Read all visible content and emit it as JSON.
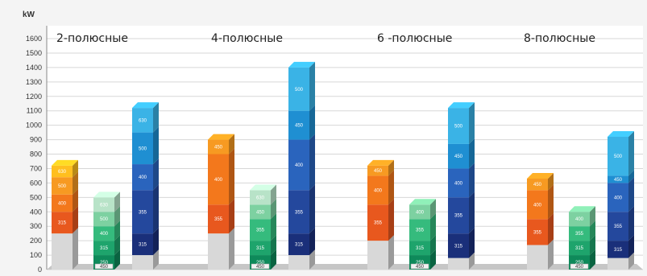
{
  "chart_data": {
    "type": "bar",
    "ylabel": "kW",
    "ylim": [
      0,
      1600
    ],
    "yticks": [
      "0",
      "100",
      "200",
      "300",
      "400",
      "500",
      "600",
      "700",
      "800",
      "900",
      "1000",
      "1100",
      "1200",
      "1300",
      "1400",
      "1500",
      "1600"
    ],
    "grid": true,
    "groups": [
      {
        "label": "2-полюсные",
        "bars": [
          {
            "family": "orange",
            "base": 250,
            "tag": "",
            "segments": [
              {
                "top": 400,
                "label": "315"
              },
              {
                "top": 520,
                "label": "400"
              },
              {
                "top": 640,
                "label": "500"
              },
              {
                "top": 720,
                "label": "630"
              }
            ]
          },
          {
            "family": "green",
            "base": 0,
            "tag": "450",
            "segments": [
              {
                "top": 100,
                "label": "250"
              },
              {
                "top": 200,
                "label": "315"
              },
              {
                "top": 300,
                "label": "400"
              },
              {
                "top": 400,
                "label": "500"
              },
              {
                "top": 500,
                "label": "630"
              }
            ]
          },
          {
            "family": "blue",
            "base": 100,
            "tag": "",
            "segments": [
              {
                "top": 250,
                "label": "315"
              },
              {
                "top": 550,
                "label": "355"
              },
              {
                "top": 730,
                "label": "400"
              },
              {
                "top": 950,
                "label": "500"
              },
              {
                "top": 1120,
                "label": "630"
              }
            ]
          }
        ]
      },
      {
        "label": "4-полюсные",
        "bars": [
          {
            "family": "orange",
            "base": 250,
            "tag": "",
            "segments": [
              {
                "top": 450,
                "label": "355"
              },
              {
                "top": 800,
                "label": "400"
              },
              {
                "top": 900,
                "label": "450"
              }
            ]
          },
          {
            "family": "green",
            "base": 0,
            "tag": "450",
            "segments": [
              {
                "top": 100,
                "label": "250"
              },
              {
                "top": 200,
                "label": "315"
              },
              {
                "top": 350,
                "label": "355"
              },
              {
                "top": 450,
                "label": "450"
              },
              {
                "top": 550,
                "label": "630"
              }
            ]
          },
          {
            "family": "blue",
            "base": 100,
            "tag": "",
            "segments": [
              {
                "top": 250,
                "label": "315"
              },
              {
                "top": 550,
                "label": "355"
              },
              {
                "top": 900,
                "label": "400"
              },
              {
                "top": 1100,
                "label": "450"
              },
              {
                "top": 1400,
                "label": "500"
              }
            ]
          }
        ]
      },
      {
        "label": "6 -полюсные",
        "bars": [
          {
            "family": "orange",
            "base": 200,
            "tag": "",
            "segments": [
              {
                "top": 450,
                "label": "355"
              },
              {
                "top": 650,
                "label": "400"
              },
              {
                "top": 720,
                "label": "450"
              }
            ]
          },
          {
            "family": "green",
            "base": 0,
            "tag": "450",
            "segments": [
              {
                "top": 100,
                "label": "250"
              },
              {
                "top": 200,
                "label": "315"
              },
              {
                "top": 350,
                "label": "355"
              },
              {
                "top": 450,
                "label": "400"
              }
            ]
          },
          {
            "family": "blue",
            "base": 80,
            "tag": "",
            "segments": [
              {
                "top": 250,
                "label": "315"
              },
              {
                "top": 500,
                "label": "355"
              },
              {
                "top": 700,
                "label": "400"
              },
              {
                "top": 870,
                "label": "450"
              },
              {
                "top": 1120,
                "label": "500"
              }
            ]
          }
        ]
      },
      {
        "label": "8-полюсные",
        "bars": [
          {
            "family": "orange",
            "base": 170,
            "tag": "",
            "segments": [
              {
                "top": 350,
                "label": "355"
              },
              {
                "top": 550,
                "label": "400"
              },
              {
                "top": 630,
                "label": "450"
              }
            ]
          },
          {
            "family": "green",
            "base": 0,
            "tag": "450",
            "segments": [
              {
                "top": 100,
                "label": "250"
              },
              {
                "top": 200,
                "label": "315"
              },
              {
                "top": 300,
                "label": "355"
              },
              {
                "top": 400,
                "label": "400"
              }
            ]
          },
          {
            "family": "blue",
            "base": 80,
            "tag": "",
            "segments": [
              {
                "top": 200,
                "label": "315"
              },
              {
                "top": 400,
                "label": "355"
              },
              {
                "top": 600,
                "label": "400"
              },
              {
                "top": 650,
                "label": "450"
              },
              {
                "top": 920,
                "label": "500"
              }
            ]
          }
        ]
      }
    ]
  },
  "colors": {
    "orange": [
      "#e8581e",
      "#f3781c",
      "#f79a22",
      "#ffbf1f",
      "#ffd94a"
    ],
    "green": [
      "#0e8a5a",
      "#1ea46c",
      "#35bb7d",
      "#7dd1a1",
      "#b8e3c8"
    ],
    "blue": [
      "#1a2f7a",
      "#24489d",
      "#2a64bd",
      "#1f8fd2",
      "#3ab3e6",
      "#8fc7ee"
    ],
    "post": "#d8d8d8",
    "post_side": "#9a9a9a",
    "gridline": "#d7d7d7",
    "floor": "#c6c6c6"
  }
}
